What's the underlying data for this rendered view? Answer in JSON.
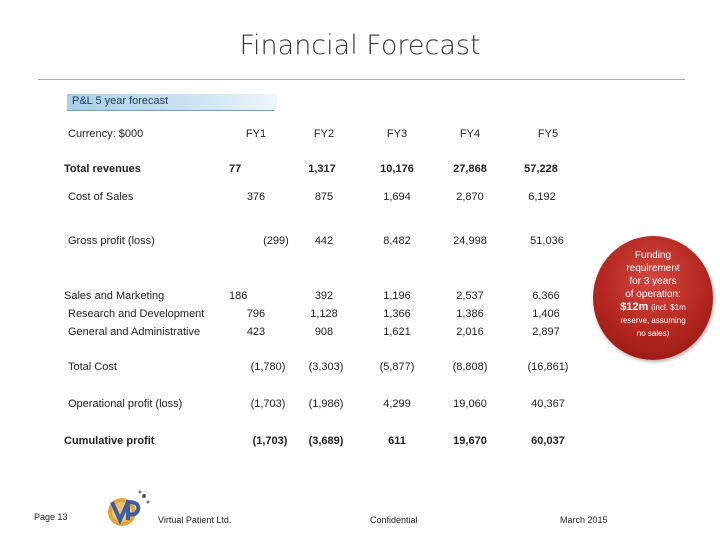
{
  "slide": {
    "title": "Financial Forecast",
    "section_label": "P&L 5 year forecast"
  },
  "table": {
    "currency_label": "Currency: $000",
    "years": [
      "FY1",
      "FY2",
      "FY3",
      "FY4",
      "FY5"
    ],
    "rows": {
      "total_revenues": {
        "label": "Total revenues",
        "values": [
          "77",
          "1,317",
          "10,176",
          "27,868",
          "57,228"
        ]
      },
      "cost_of_sales": {
        "label": "Cost of Sales",
        "values": [
          "376",
          "875",
          "1,694",
          "2,870",
          "6,192"
        ]
      },
      "gross_profit": {
        "label": "Gross profit (loss)",
        "values": [
          "(299)",
          "442",
          "8,482",
          "24,998",
          "51,036"
        ]
      },
      "sales_marketing": {
        "label": "Sales and Marketing",
        "values": [
          "186",
          "392",
          "1,196",
          "2,537",
          "6,366"
        ]
      },
      "research_dev": {
        "label": "Research and Development",
        "values": [
          "796",
          "1,128",
          "1,366",
          "1,386",
          "1,406"
        ]
      },
      "general_admin": {
        "label": "General and Administrative",
        "values": [
          "423",
          "908",
          "1,621",
          "2,016",
          "2,897"
        ]
      },
      "total_cost": {
        "label": "Total Cost",
        "values": [
          "(1,780)",
          "(3,303)",
          "(5,877)",
          "(8,808)",
          "(16,861)"
        ]
      },
      "operational_profit": {
        "label": "Operational profit (loss)",
        "values": [
          "(1,703)",
          "(1,986)",
          "4,299",
          "19,060",
          "40,367"
        ]
      },
      "cumulative_profit": {
        "label": "Cumulative profit",
        "values": [
          "(1,703)",
          "(3,689)",
          "611",
          "19,670",
          "60,037"
        ]
      }
    }
  },
  "badge": {
    "line1": "Funding",
    "line2": "requirement",
    "line3": "for 3 years",
    "line4": "of operation:",
    "amount": "$12m",
    "amount_note": "(incl. $1m",
    "line6": "reserve, assuming",
    "line7": "no sales)",
    "color": "#b3261f"
  },
  "footer": {
    "page": "Page 13",
    "company": "Virtual Patient Ltd.",
    "confidential": "Confidential",
    "date": "March 2015",
    "logo_icon": "vp-logo-icon"
  }
}
